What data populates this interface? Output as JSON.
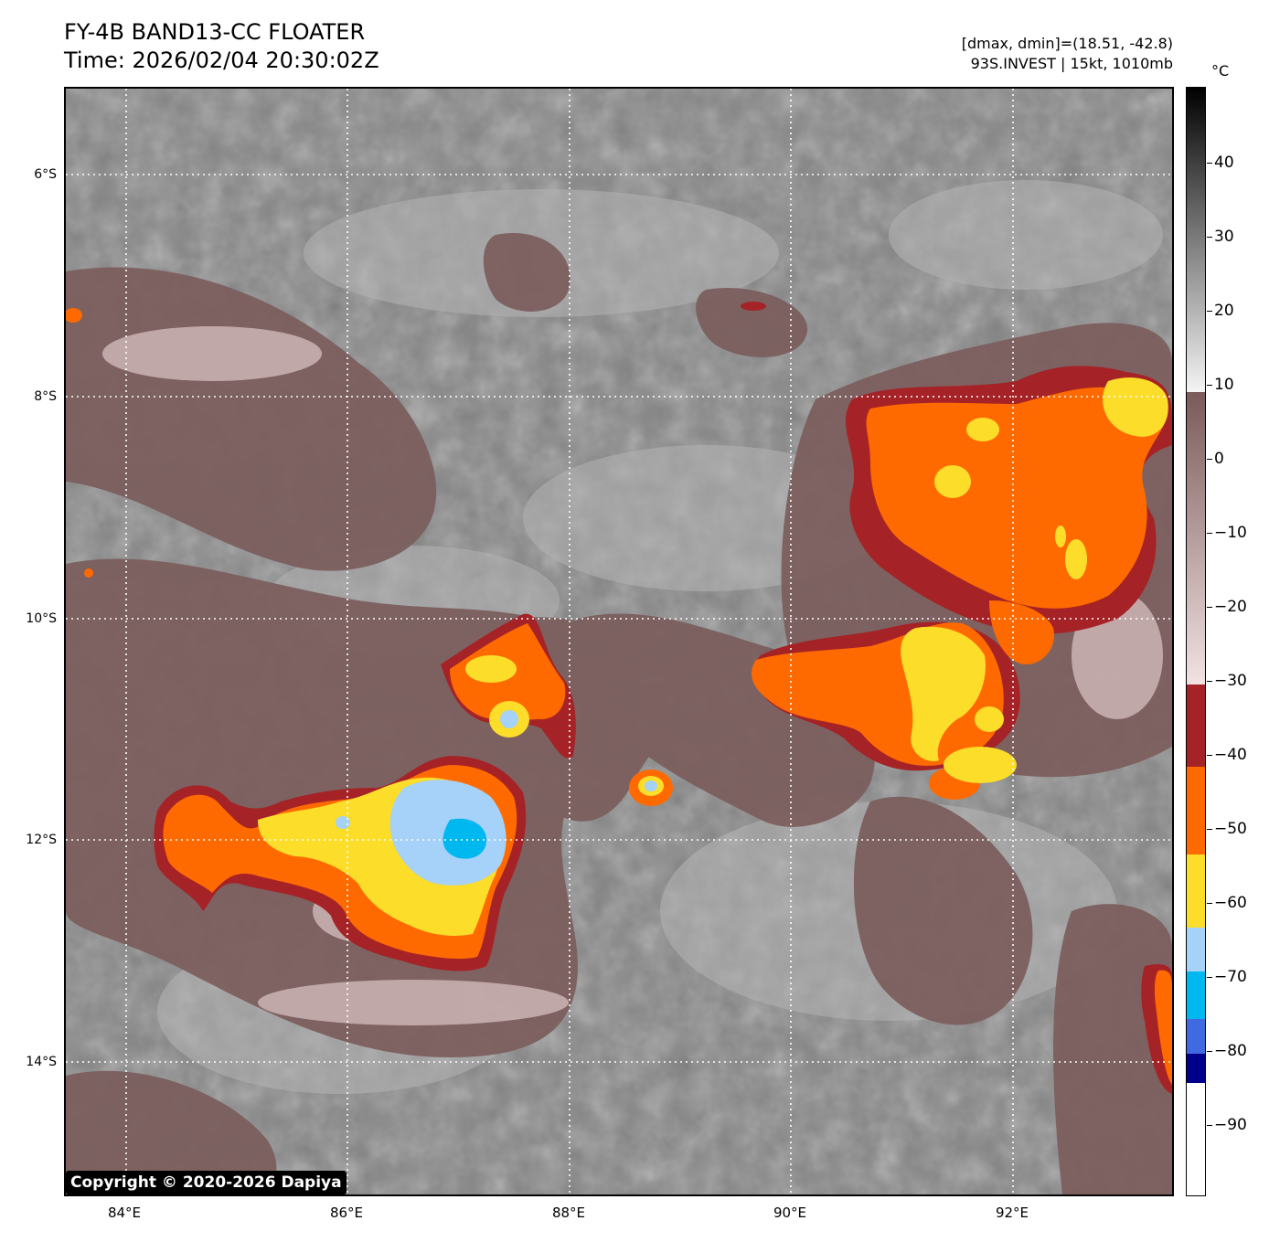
{
  "header": {
    "title": "FY-4B BAND13-CC FLOATER",
    "time": "Time: 2026/02/04 20:30:02Z",
    "dmax_dmin": "[dmax, dmin]=(18.51, -42.8)",
    "storm_info": "93S.INVEST | 15kt, 1010mb"
  },
  "map": {
    "lat_labels": [
      "6°S",
      "8°S",
      "10°S",
      "12°S",
      "14°S"
    ],
    "lon_labels": [
      "84°E",
      "86°E",
      "88°E",
      "90°E",
      "92°E"
    ],
    "copyright": "Copyright © 2020-2026 Dapiya"
  },
  "colorbar": {
    "unit": "°C",
    "labels": [
      "40",
      "30",
      "20",
      "10",
      "0",
      "−10",
      "−20",
      "−30",
      "−40",
      "−50",
      "−60",
      "−70",
      "−80",
      "−90"
    ],
    "colors": {
      "warm_gray": "#808080",
      "mauve": "#8c6a6a",
      "dark_red": "#a52326",
      "orange": "#ff6a00",
      "yellow": "#fbdd2a",
      "light_blue": "#a6d1f8",
      "cyan": "#00b8f0",
      "royal_blue": "#4169e1",
      "navy": "#00008b"
    }
  }
}
